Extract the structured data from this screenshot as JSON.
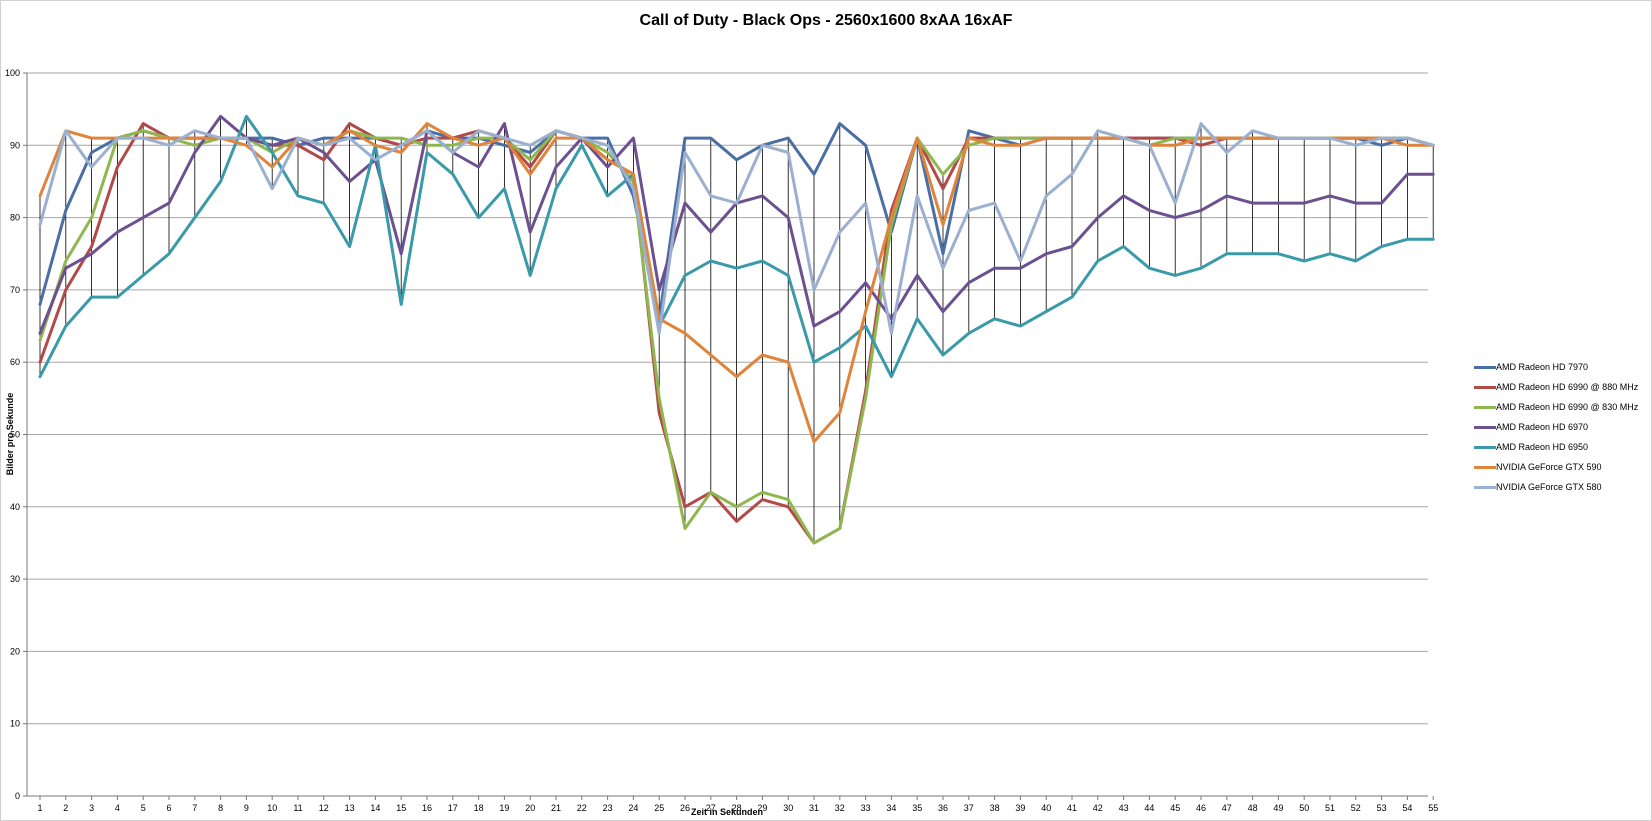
{
  "chart_data": {
    "type": "line",
    "title": "Call of Duty - Black Ops - 2560x1600 8xAA 16xAF",
    "xlabel": "Zeit in Sekunden",
    "ylabel": "Bilder pro Sekunde",
    "ylim": [
      0,
      100
    ],
    "yticks": [
      0,
      10,
      20,
      30,
      40,
      50,
      60,
      70,
      80,
      90,
      100
    ],
    "grid": "horizontal",
    "drop_lines": true,
    "legend_position": "right",
    "x": [
      1,
      2,
      3,
      4,
      5,
      6,
      7,
      8,
      9,
      10,
      11,
      12,
      13,
      14,
      15,
      16,
      17,
      18,
      19,
      20,
      21,
      22,
      23,
      24,
      25,
      26,
      27,
      28,
      29,
      30,
      31,
      32,
      33,
      34,
      35,
      36,
      37,
      38,
      39,
      40,
      41,
      42,
      43,
      44,
      45,
      46,
      47,
      48,
      49,
      50,
      51,
      52,
      53,
      54,
      55
    ],
    "series": [
      {
        "name": "AMD Radeon HD 7970",
        "color": "#4a6fa5",
        "values": [
          68,
          81,
          89,
          91,
          92,
          91,
          91,
          91,
          91,
          91,
          90,
          91,
          91,
          91,
          90,
          92,
          91,
          91,
          90,
          89,
          92,
          91,
          91,
          83,
          66,
          91,
          91,
          88,
          90,
          91,
          86,
          93,
          90,
          78,
          91,
          75,
          92,
          91,
          90,
          91,
          91,
          91,
          91,
          91,
          91,
          91,
          91,
          91,
          91,
          91,
          91,
          91,
          90,
          91,
          90
        ]
      },
      {
        "name": "AMD Radeon HD 6990 @ 880 MHz",
        "color": "#b24a48",
        "values": [
          60,
          70,
          76,
          87,
          93,
          91,
          91,
          91,
          91,
          90,
          90,
          88,
          93,
          91,
          90,
          91,
          91,
          92,
          91,
          87,
          92,
          91,
          88,
          86,
          53,
          40,
          42,
          38,
          41,
          40,
          35,
          37,
          56,
          81,
          91,
          84,
          91,
          91,
          91,
          91,
          91,
          91,
          91,
          91,
          91,
          90,
          91,
          91,
          91,
          91,
          91,
          91,
          91,
          91,
          90
        ]
      },
      {
        "name": "AMD Radeon HD 6990 @ 830 MHz",
        "color": "#8fb74f",
        "values": [
          63,
          74,
          80,
          91,
          92,
          91,
          90,
          91,
          91,
          89,
          91,
          90,
          92,
          91,
          91,
          90,
          90,
          91,
          91,
          88,
          92,
          91,
          89,
          85,
          55,
          37,
          42,
          40,
          42,
          41,
          35,
          37,
          55,
          79,
          91,
          86,
          90,
          91,
          91,
          91,
          91,
          91,
          91,
          90,
          91,
          91,
          91,
          91,
          91,
          91,
          91,
          91,
          91,
          91,
          90
        ]
      },
      {
        "name": "AMD Radeon HD 6970",
        "color": "#6c5090",
        "values": [
          64,
          73,
          75,
          78,
          80,
          82,
          89,
          94,
          91,
          90,
          91,
          89,
          85,
          88,
          75,
          92,
          89,
          87,
          93,
          78,
          87,
          91,
          87,
          91,
          70,
          82,
          78,
          82,
          83,
          80,
          65,
          67,
          71,
          66,
          72,
          67,
          71,
          73,
          73,
          75,
          76,
          80,
          83,
          81,
          80,
          81,
          83,
          82,
          82,
          82,
          83,
          82,
          82,
          86,
          86
        ]
      },
      {
        "name": "AMD Radeon HD 6950",
        "color": "#3a9aaa",
        "values": [
          58,
          65,
          69,
          69,
          72,
          75,
          80,
          85,
          94,
          89,
          83,
          82,
          76,
          90,
          68,
          89,
          86,
          80,
          84,
          72,
          84,
          90,
          83,
          86,
          65,
          72,
          74,
          73,
          74,
          72,
          60,
          62,
          65,
          58,
          66,
          61,
          64,
          66,
          65,
          67,
          69,
          74,
          76,
          73,
          72,
          73,
          75,
          75,
          75,
          74,
          75,
          74,
          76,
          77,
          77
        ]
      },
      {
        "name": "NVIDIA GeForce GTX 590",
        "color": "#e0843c",
        "values": [
          83,
          92,
          91,
          91,
          91,
          91,
          91,
          91,
          90,
          87,
          91,
          90,
          92,
          90,
          89,
          93,
          91,
          90,
          91,
          86,
          91,
          91,
          88,
          86,
          66,
          64,
          61,
          58,
          61,
          60,
          49,
          53,
          67,
          80,
          91,
          79,
          91,
          90,
          90,
          91,
          91,
          91,
          91,
          90,
          90,
          91,
          91,
          91,
          91,
          91,
          91,
          91,
          91,
          90,
          90
        ]
      },
      {
        "name": "NVIDIA GeForce GTX 580",
        "color": "#9bb0d0",
        "values": [
          79,
          92,
          87,
          91,
          91,
          90,
          92,
          91,
          91,
          84,
          91,
          90,
          91,
          88,
          90,
          92,
          89,
          92,
          91,
          90,
          92,
          91,
          90,
          84,
          64,
          89,
          83,
          82,
          90,
          89,
          70,
          78,
          82,
          64,
          83,
          73,
          81,
          82,
          74,
          83,
          86,
          92,
          91,
          90,
          82,
          93,
          89,
          92,
          91,
          91,
          91,
          90,
          91,
          91,
          90
        ]
      }
    ]
  }
}
